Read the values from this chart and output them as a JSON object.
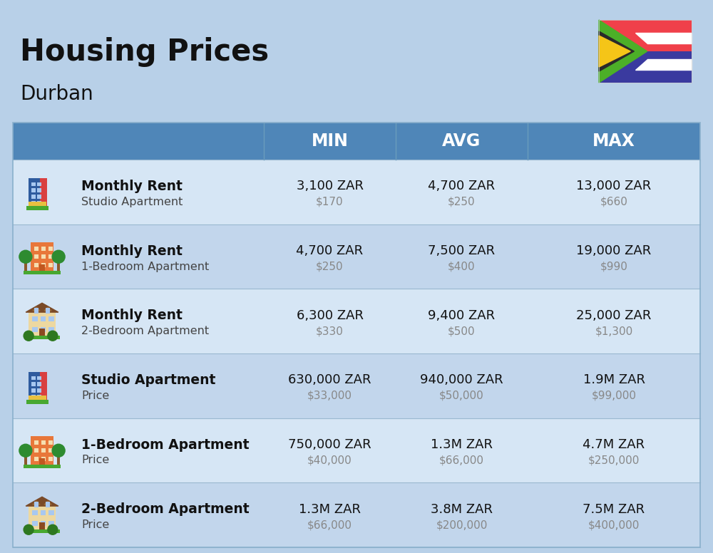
{
  "title": "Housing Prices",
  "subtitle": "Durban",
  "background_color": "#b8d0e8",
  "header_bg_color": "#4f86b8",
  "header_text_color": "#ffffff",
  "row_bg_light": "#d6e6f5",
  "row_bg_dark": "#c2d6ec",
  "col_headers": [
    "MIN",
    "AVG",
    "MAX"
  ],
  "rows": [
    {
      "bold_label": "Monthly Rent",
      "sub_label": "Studio Apartment",
      "icon_type": "blue_office",
      "min_zar": "3,100 ZAR",
      "min_usd": "$170",
      "avg_zar": "4,700 ZAR",
      "avg_usd": "$250",
      "max_zar": "13,000 ZAR",
      "max_usd": "$660"
    },
    {
      "bold_label": "Monthly Rent",
      "sub_label": "1-Bedroom Apartment",
      "icon_type": "orange_apt",
      "min_zar": "4,700 ZAR",
      "min_usd": "$250",
      "avg_zar": "7,500 ZAR",
      "avg_usd": "$400",
      "max_zar": "19,000 ZAR",
      "max_usd": "$990"
    },
    {
      "bold_label": "Monthly Rent",
      "sub_label": "2-Bedroom Apartment",
      "icon_type": "beige_house",
      "min_zar": "6,300 ZAR",
      "min_usd": "$330",
      "avg_zar": "9,400 ZAR",
      "avg_usd": "$500",
      "max_zar": "25,000 ZAR",
      "max_usd": "$1,300"
    },
    {
      "bold_label": "Studio Apartment",
      "sub_label": "Price",
      "icon_type": "blue_office",
      "min_zar": "630,000 ZAR",
      "min_usd": "$33,000",
      "avg_zar": "940,000 ZAR",
      "avg_usd": "$50,000",
      "max_zar": "1.9M ZAR",
      "max_usd": "$99,000"
    },
    {
      "bold_label": "1-Bedroom Apartment",
      "sub_label": "Price",
      "icon_type": "orange_apt",
      "min_zar": "750,000 ZAR",
      "min_usd": "$40,000",
      "avg_zar": "1.3M ZAR",
      "avg_usd": "$66,000",
      "max_zar": "4.7M ZAR",
      "max_usd": "$250,000"
    },
    {
      "bold_label": "2-Bedroom Apartment",
      "sub_label": "Price",
      "icon_type": "beige_house",
      "min_zar": "1.3M ZAR",
      "min_usd": "$66,000",
      "avg_zar": "3.8M ZAR",
      "avg_usd": "$200,000",
      "max_zar": "7.5M ZAR",
      "max_usd": "$400,000"
    }
  ],
  "flag": {
    "red": "#F0404A",
    "blue": "#3A3A9F",
    "green": "#4CAF28",
    "black": "#2a2a2a",
    "yellow": "#F5C518",
    "white": "#FFFFFF"
  }
}
